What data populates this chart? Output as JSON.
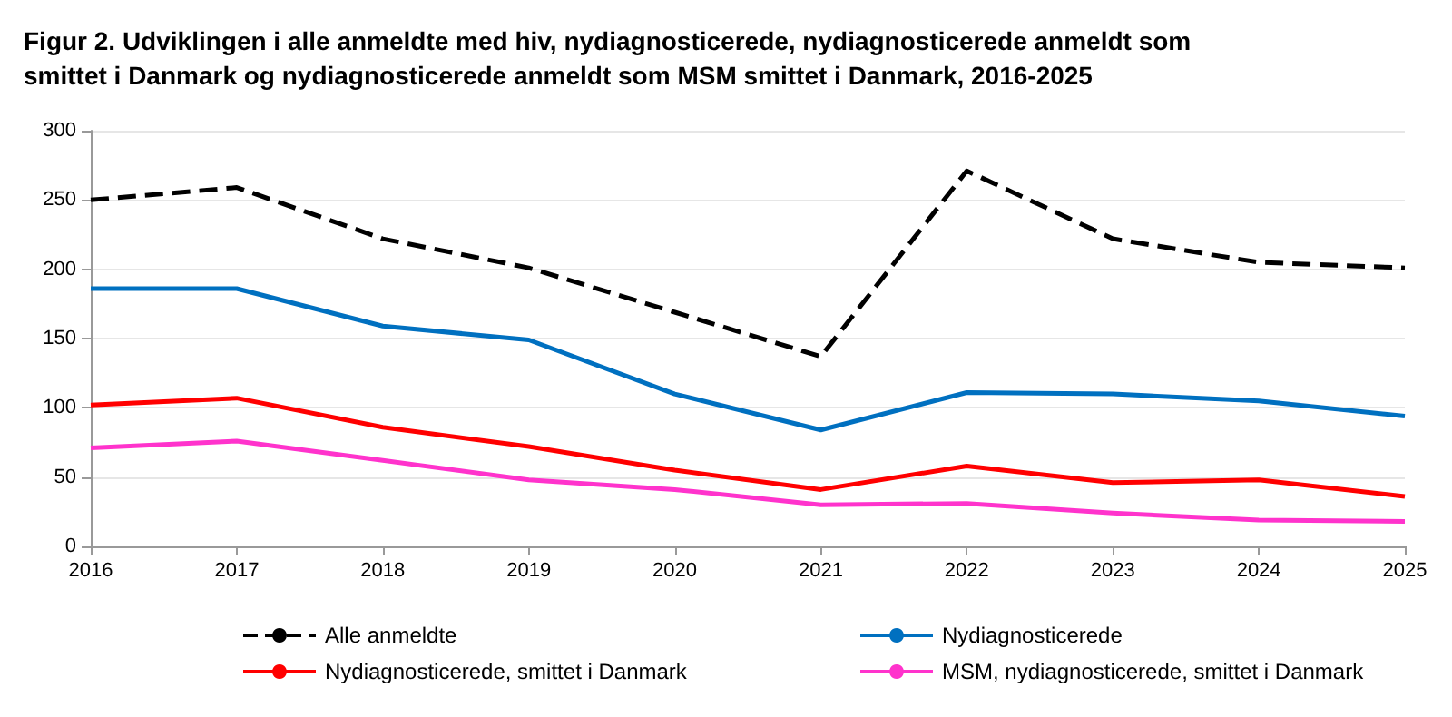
{
  "chart_data": {
    "type": "line",
    "title": "Figur 2. Udviklingen i alle anmeldte med hiv, nydiagnosticerede, nydiagnosticerede anmeldt som\nsmittet i Danmark og nydiagnosticerede anmeldt som MSM smittet i Danmark, 2016-2025",
    "categories": [
      "2016",
      "2017",
      "2018",
      "2019",
      "2020",
      "2021",
      "2022",
      "2023",
      "2024",
      "2025"
    ],
    "series": [
      {
        "name": "Alle anmeldte",
        "color": "#000000",
        "line_style": "dashed",
        "values": [
          250,
          259,
          222,
          201,
          169,
          137,
          271,
          222,
          205,
          201
        ]
      },
      {
        "name": "Nydiagnosticerede",
        "color": "#0070c0",
        "values": [
          186,
          186,
          159,
          149,
          110,
          84,
          111,
          110,
          105,
          94
        ]
      },
      {
        "name": "Nydiagnosticerede, smittet i Danmark",
        "color": "#ff0000",
        "values": [
          102,
          107,
          86,
          72,
          55,
          41,
          58,
          46,
          48,
          36
        ]
      },
      {
        "name": "MSM, nydiagnosticerede, smittet i Danmark",
        "color": "#ff33cc",
        "values": [
          71,
          76,
          62,
          48,
          41,
          30,
          31,
          24,
          19,
          18
        ]
      }
    ],
    "ylim": [
      0,
      300
    ],
    "yticks": [
      0,
      50,
      100,
      150,
      200,
      250,
      300
    ],
    "grid": "y",
    "legend": "bottom",
    "marker": "none",
    "line_style": "solid"
  }
}
